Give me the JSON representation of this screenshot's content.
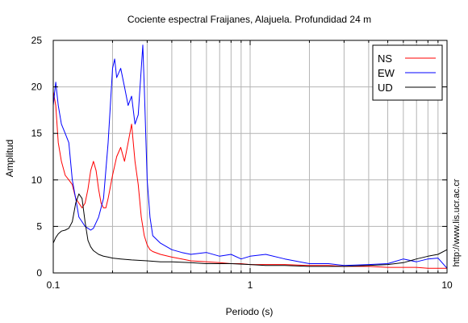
{
  "chart_data": {
    "type": "line",
    "title": "Cociente espectral Fraijanes, Alajuela. Profundidad 24 m",
    "xlabel": "Periodo (s)",
    "ylabel": "Amplitud",
    "xscale": "log",
    "xlim": [
      0.1,
      10
    ],
    "ylim": [
      0,
      25
    ],
    "xticks": [
      0.1,
      1,
      10
    ],
    "xtick_labels": [
      "0.1",
      "1",
      "10"
    ],
    "yticks": [
      0,
      5,
      10,
      15,
      20,
      25
    ],
    "ytick_labels": [
      "0",
      "5",
      "10",
      "15",
      "20",
      "25"
    ],
    "grid": true,
    "legend_position": "top-right",
    "watermark": "http://www.lis.ucr.ac.cr",
    "series": [
      {
        "name": "NS",
        "color": "#ff0000",
        "x": [
          0.1,
          0.103,
          0.106,
          0.11,
          0.115,
          0.12,
          0.125,
          0.13,
          0.135,
          0.14,
          0.145,
          0.15,
          0.155,
          0.16,
          0.165,
          0.17,
          0.175,
          0.18,
          0.185,
          0.19,
          0.2,
          0.21,
          0.22,
          0.23,
          0.24,
          0.25,
          0.26,
          0.27,
          0.28,
          0.29,
          0.3,
          0.31,
          0.32,
          0.35,
          0.4,
          0.45,
          0.5,
          0.6,
          0.7,
          0.8,
          0.9,
          1.0,
          1.2,
          1.5,
          2.0,
          2.5,
          3.0,
          4.0,
          5.0,
          6.0,
          7.0,
          8.0,
          9.0,
          10.0
        ],
        "y": [
          19.5,
          18.0,
          14.0,
          12.0,
          10.5,
          10.0,
          9.5,
          8.0,
          7.5,
          7.0,
          7.5,
          9.0,
          11.0,
          12.0,
          11.0,
          9.0,
          7.5,
          7.0,
          7.0,
          8.0,
          10.5,
          12.5,
          13.5,
          12.0,
          14.0,
          16.0,
          12.0,
          9.5,
          6.0,
          4.0,
          3.0,
          2.5,
          2.3,
          2.0,
          1.7,
          1.5,
          1.3,
          1.2,
          1.1,
          1.0,
          1.0,
          0.9,
          0.9,
          0.9,
          0.8,
          0.8,
          0.7,
          0.7,
          0.6,
          0.6,
          0.6,
          0.5,
          0.5,
          0.5
        ]
      },
      {
        "name": "EW",
        "color": "#0000ff",
        "x": [
          0.1,
          0.103,
          0.106,
          0.11,
          0.115,
          0.12,
          0.125,
          0.13,
          0.135,
          0.14,
          0.145,
          0.15,
          0.155,
          0.16,
          0.17,
          0.18,
          0.19,
          0.2,
          0.205,
          0.21,
          0.22,
          0.23,
          0.24,
          0.25,
          0.26,
          0.27,
          0.28,
          0.285,
          0.29,
          0.3,
          0.31,
          0.32,
          0.35,
          0.4,
          0.45,
          0.5,
          0.6,
          0.7,
          0.8,
          0.9,
          1.0,
          1.2,
          1.5,
          2.0,
          2.5,
          3.0,
          4.0,
          5.0,
          6.0,
          7.0,
          8.0,
          9.0,
          10.0
        ],
        "y": [
          18.0,
          20.5,
          18.0,
          16.0,
          15.0,
          14.0,
          10.0,
          8.0,
          6.0,
          5.5,
          5.0,
          4.8,
          4.6,
          4.8,
          6.0,
          8.0,
          14.0,
          22.0,
          23.0,
          21.0,
          22.0,
          20.0,
          18.0,
          19.0,
          16.0,
          17.0,
          22.0,
          24.5,
          20.0,
          10.0,
          6.0,
          4.0,
          3.2,
          2.5,
          2.2,
          2.0,
          2.2,
          1.8,
          2.0,
          1.5,
          1.8,
          2.0,
          1.5,
          1.0,
          1.0,
          0.8,
          0.9,
          1.0,
          1.5,
          1.2,
          1.5,
          1.6,
          0.5
        ]
      },
      {
        "name": "UD",
        "color": "#000000",
        "x": [
          0.1,
          0.103,
          0.106,
          0.11,
          0.115,
          0.12,
          0.125,
          0.13,
          0.135,
          0.14,
          0.145,
          0.15,
          0.155,
          0.16,
          0.17,
          0.18,
          0.19,
          0.2,
          0.22,
          0.25,
          0.3,
          0.35,
          0.4,
          0.5,
          0.6,
          0.7,
          0.8,
          1.0,
          1.2,
          1.5,
          2.0,
          2.5,
          3.0,
          4.0,
          5.0,
          6.0,
          7.0,
          8.0,
          9.0,
          10.0
        ],
        "y": [
          3.2,
          3.8,
          4.2,
          4.5,
          4.6,
          4.8,
          5.5,
          7.5,
          8.5,
          8.0,
          5.5,
          3.5,
          2.8,
          2.4,
          2.0,
          1.8,
          1.7,
          1.6,
          1.5,
          1.4,
          1.3,
          1.2,
          1.2,
          1.1,
          1.0,
          1.0,
          1.0,
          0.9,
          0.8,
          0.8,
          0.7,
          0.7,
          0.7,
          0.8,
          0.9,
          1.1,
          1.5,
          1.8,
          2.0,
          2.5
        ]
      }
    ]
  }
}
